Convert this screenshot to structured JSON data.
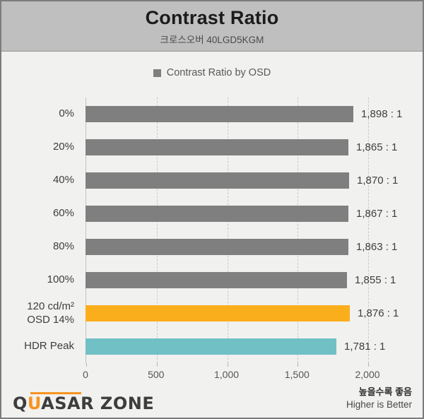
{
  "header": {
    "title": "Contrast Ratio",
    "subtitle": "크로스오버 40LGD5KGM"
  },
  "legend": {
    "label": "Contrast Ratio by OSD",
    "swatch_color": "#7f7f7f"
  },
  "chart_data": {
    "type": "bar",
    "orientation": "horizontal",
    "title": "Contrast Ratio",
    "subtitle": "크로스오버 40LGD5KGM",
    "legend": [
      "Contrast Ratio by OSD"
    ],
    "legend_position": "top-center",
    "categories": [
      "0%",
      "20%",
      "40%",
      "60%",
      "80%",
      "100%",
      "120 cd/m²\nOSD 14%",
      "HDR Peak"
    ],
    "values": [
      1898,
      1865,
      1870,
      1867,
      1863,
      1855,
      1876,
      1781
    ],
    "value_labels": [
      "1,898 : 1",
      "1,865 : 1",
      "1,870 : 1",
      "1,867 : 1",
      "1,863 : 1",
      "1,855 : 1",
      "1,876 : 1",
      "1,781 : 1"
    ],
    "bar_colors": [
      "#7f7f7f",
      "#7f7f7f",
      "#7f7f7f",
      "#7f7f7f",
      "#7f7f7f",
      "#7f7f7f",
      "#fbae1c",
      "#70c0c5"
    ],
    "xlim": [
      0,
      2000
    ],
    "x_ticks": [
      0,
      500,
      1000,
      1500,
      2000
    ],
    "x_tick_labels": [
      "0",
      "500",
      "1,000",
      "1,500",
      "2,000"
    ],
    "grid": "vertical-dashed",
    "higher_is_better": true
  },
  "footer": {
    "logo": {
      "part_q": "Q",
      "part_u": "U",
      "part_rest": "ASAR ZONE",
      "accent_color": "#f7941e"
    },
    "note_ko": "높을수록 좋음",
    "note_en": "Higher is Better"
  },
  "colors": {
    "header_bg": "#bfbfbf",
    "page_bg": "#f1f1f0",
    "bar_default": "#7f7f7f",
    "bar_sdr_calibrated": "#fbae1c",
    "bar_hdr": "#70c0c5"
  }
}
